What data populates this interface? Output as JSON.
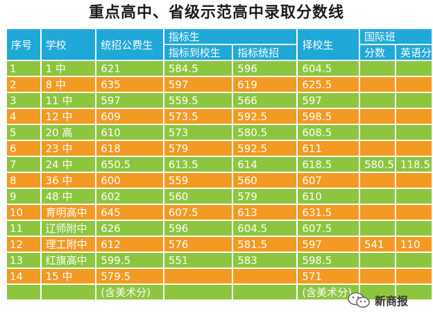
{
  "title": "重点高中、省级示范高中录取分数线",
  "headers": {
    "seq": "序号",
    "school": "学校",
    "public": "统招公费生",
    "quota_group": "指标生",
    "quota_to_school": "指标到校生",
    "quota_general": "指标统招",
    "choice": "择校生",
    "intl_group": "国际班",
    "intl_score": "分数",
    "intl_english": "英语分"
  },
  "rows": [
    {
      "seq": "1",
      "school": "1 中",
      "public": "621",
      "q_school": "584.5",
      "q_general": "596",
      "choice": "604.5",
      "intl_score": "",
      "intl_english": ""
    },
    {
      "seq": "2",
      "school": "8 中",
      "public": "635",
      "q_school": "597",
      "q_general": "619",
      "choice": "625.5",
      "intl_score": "",
      "intl_english": ""
    },
    {
      "seq": "3",
      "school": "11 中",
      "public": "597",
      "q_school": "559.5",
      "q_general": "566",
      "choice": "597",
      "intl_score": "",
      "intl_english": ""
    },
    {
      "seq": "4",
      "school": "12 中",
      "public": "609",
      "q_school": "573.5",
      "q_general": "592.5",
      "choice": "598.5",
      "intl_score": "",
      "intl_english": ""
    },
    {
      "seq": "5",
      "school": "20 高",
      "public": "610",
      "q_school": "573",
      "q_general": "580.5",
      "choice": "608.5",
      "intl_score": "",
      "intl_english": ""
    },
    {
      "seq": "6",
      "school": "23 中",
      "public": "618",
      "q_school": "579",
      "q_general": "592.5",
      "choice": "611",
      "intl_score": "",
      "intl_english": ""
    },
    {
      "seq": "7",
      "school": "24 中",
      "public": "650.5",
      "q_school": "613.5",
      "q_general": "614",
      "choice": "618.5",
      "intl_score": "580.5",
      "intl_english": "118.5"
    },
    {
      "seq": "8",
      "school": "36 中",
      "public": "600",
      "q_school": "559",
      "q_general": "560",
      "choice": "607",
      "intl_score": "",
      "intl_english": ""
    },
    {
      "seq": "9",
      "school": "48 中",
      "public": "602",
      "q_school": "560",
      "q_general": "579",
      "choice": "610",
      "intl_score": "",
      "intl_english": ""
    },
    {
      "seq": "10",
      "school": "育明高中",
      "public": "645",
      "q_school": "607.5",
      "q_general": "613",
      "choice": "631.5",
      "intl_score": "",
      "intl_english": ""
    },
    {
      "seq": "11",
      "school": "辽师附中",
      "public": "626",
      "q_school": "596",
      "q_general": "604.5",
      "choice": "607.5",
      "intl_score": "",
      "intl_english": ""
    },
    {
      "seq": "12",
      "school": "理工附中",
      "public": "612",
      "q_school": "576",
      "q_general": "581.5",
      "choice": "597",
      "intl_score": "541",
      "intl_english": "110"
    },
    {
      "seq": "13",
      "school": "红旗高中",
      "public": "599.5",
      "q_school": "551",
      "q_general": "583",
      "choice": "598.5",
      "intl_score": "",
      "intl_english": ""
    },
    {
      "seq": "14",
      "school": "15 中",
      "public": "579.5",
      "q_school": "",
      "q_general": "",
      "choice": "571",
      "intl_score": "",
      "intl_english": ""
    },
    {
      "seq": "",
      "school": "",
      "public": "(含美术分)",
      "q_school": "",
      "q_general": "",
      "choice": "(含美术分)",
      "intl_score": "",
      "intl_english": ""
    }
  ],
  "colors": {
    "header": "#1fa8d8",
    "green": "#8cc63f",
    "orange": "#f39a22"
  },
  "watermark": {
    "icon": "wechat-icon",
    "text": "新商报"
  }
}
